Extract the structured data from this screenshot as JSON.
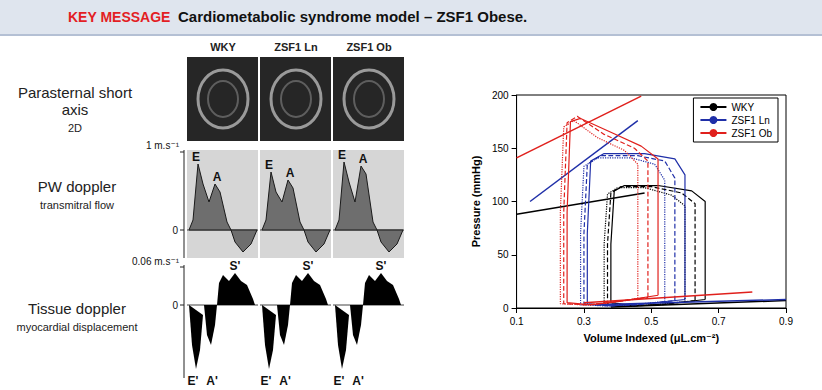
{
  "header": {
    "label": "KEY MESSAGE",
    "title": "Cardiometabolic syndrome model – ZSF1 Obese."
  },
  "panel": {
    "columns": [
      "WKY",
      "ZSF1 Ln",
      "ZSF1 Ob"
    ],
    "rows": [
      {
        "label": "Parasternal short axis",
        "sublabel": "2D"
      },
      {
        "label": "PW doppler",
        "sublabel": "transmitral flow",
        "scale_top": "1 m.s⁻¹",
        "zero": "0",
        "marks": [
          "E",
          "A"
        ]
      },
      {
        "label": "Tissue doppler",
        "sublabel": "myocardial displacement",
        "scale_top": "0.06 m.s⁻¹",
        "zero": "0",
        "marks": [
          "E'",
          "A'",
          "S'"
        ]
      }
    ]
  },
  "chart_data": {
    "type": "line",
    "x_label": "Volume Indexed (μL.cm⁻²)",
    "y_label": "Pressure (mmHg)",
    "xlim": [
      0.1,
      0.9
    ],
    "xticks": [
      0.1,
      0.3,
      0.5,
      0.7,
      0.9
    ],
    "ylim": [
      0,
      200
    ],
    "yticks": [
      0,
      50,
      100,
      150,
      200
    ],
    "grid": false,
    "legend": "upper right",
    "series": [
      {
        "name": "WKY",
        "color": "#000000",
        "loops": [
          {
            "line_style": "solid",
            "values": [
              [
                0.66,
                8
              ],
              [
                0.66,
                100
              ],
              [
                0.62,
                110
              ],
              [
                0.52,
                115
              ],
              [
                0.42,
                115
              ],
              [
                0.39,
                110
              ],
              [
                0.38,
                60
              ],
              [
                0.38,
                5
              ],
              [
                0.45,
                2
              ],
              [
                0.55,
                4
              ],
              [
                0.66,
                8
              ]
            ]
          },
          {
            "line_style": "dashed",
            "values": [
              [
                0.63,
                7
              ],
              [
                0.63,
                98
              ],
              [
                0.59,
                108
              ],
              [
                0.5,
                114
              ],
              [
                0.41,
                114
              ],
              [
                0.38,
                108
              ],
              [
                0.37,
                60
              ],
              [
                0.37,
                4
              ],
              [
                0.44,
                2
              ],
              [
                0.53,
                3
              ],
              [
                0.63,
                7
              ]
            ]
          },
          {
            "line_style": "dotted",
            "values": [
              [
                0.6,
                6
              ],
              [
                0.6,
                96
              ],
              [
                0.56,
                106
              ],
              [
                0.48,
                113
              ],
              [
                0.4,
                113
              ],
              [
                0.37,
                107
              ],
              [
                0.36,
                60
              ],
              [
                0.36,
                4
              ],
              [
                0.43,
                2
              ],
              [
                0.51,
                3
              ],
              [
                0.6,
                6
              ]
            ]
          }
        ],
        "espvr": [
          [
            0.1,
            88
          ],
          [
            0.48,
            108
          ]
        ],
        "edpvr": [
          [
            0.38,
            1
          ],
          [
            0.9,
            7
          ]
        ]
      },
      {
        "name": "ZSF1 Ln",
        "color": "#1f2fa8",
        "loops": [
          {
            "line_style": "solid",
            "values": [
              [
                0.6,
                8
              ],
              [
                0.6,
                125
              ],
              [
                0.57,
                140
              ],
              [
                0.48,
                145
              ],
              [
                0.36,
                145
              ],
              [
                0.32,
                138
              ],
              [
                0.31,
                70
              ],
              [
                0.31,
                4
              ],
              [
                0.38,
                2
              ],
              [
                0.48,
                4
              ],
              [
                0.6,
                8
              ]
            ]
          },
          {
            "line_style": "dashed",
            "values": [
              [
                0.57,
                7
              ],
              [
                0.57,
                122
              ],
              [
                0.54,
                138
              ],
              [
                0.46,
                143
              ],
              [
                0.35,
                143
              ],
              [
                0.31,
                135
              ],
              [
                0.3,
                70
              ],
              [
                0.3,
                4
              ],
              [
                0.37,
                2
              ],
              [
                0.46,
                3
              ],
              [
                0.57,
                7
              ]
            ]
          },
          {
            "line_style": "dotted",
            "values": [
              [
                0.54,
                6
              ],
              [
                0.54,
                120
              ],
              [
                0.51,
                135
              ],
              [
                0.44,
                141
              ],
              [
                0.34,
                141
              ],
              [
                0.3,
                133
              ],
              [
                0.29,
                70
              ],
              [
                0.29,
                3
              ],
              [
                0.36,
                2
              ],
              [
                0.44,
                3
              ],
              [
                0.54,
                6
              ]
            ]
          }
        ],
        "espvr": [
          [
            0.14,
            100
          ],
          [
            0.46,
            176
          ]
        ],
        "edpvr": [
          [
            0.33,
            3
          ],
          [
            0.9,
            8
          ]
        ]
      },
      {
        "name": "ZSF1 Ob",
        "color": "#e0201c",
        "loops": [
          {
            "line_style": "solid",
            "values": [
              [
                0.52,
                12
              ],
              [
                0.52,
                140
              ],
              [
                0.47,
                152
              ],
              [
                0.38,
                165
              ],
              [
                0.29,
                178
              ],
              [
                0.26,
                175
              ],
              [
                0.25,
                90
              ],
              [
                0.25,
                5
              ],
              [
                0.32,
                3
              ],
              [
                0.42,
                7
              ],
              [
                0.52,
                12
              ]
            ]
          },
          {
            "line_style": "dashed",
            "values": [
              [
                0.49,
                10
              ],
              [
                0.49,
                138
              ],
              [
                0.45,
                150
              ],
              [
                0.36,
                163
              ],
              [
                0.28,
                180
              ],
              [
                0.25,
                174
              ],
              [
                0.24,
                90
              ],
              [
                0.24,
                4
              ],
              [
                0.31,
                3
              ],
              [
                0.4,
                6
              ],
              [
                0.49,
                10
              ]
            ]
          },
          {
            "line_style": "dotted",
            "values": [
              [
                0.46,
                9
              ],
              [
                0.46,
                135
              ],
              [
                0.42,
                148
              ],
              [
                0.34,
                160
              ],
              [
                0.27,
                176
              ],
              [
                0.24,
                170
              ],
              [
                0.23,
                90
              ],
              [
                0.23,
                4
              ],
              [
                0.3,
                3
              ],
              [
                0.38,
                5
              ],
              [
                0.46,
                9
              ]
            ]
          }
        ],
        "espvr": [
          [
            0.1,
            141
          ],
          [
            0.47,
            199
          ]
        ],
        "edpvr": [
          [
            0.3,
            5
          ],
          [
            0.8,
            15
          ]
        ]
      }
    ]
  }
}
